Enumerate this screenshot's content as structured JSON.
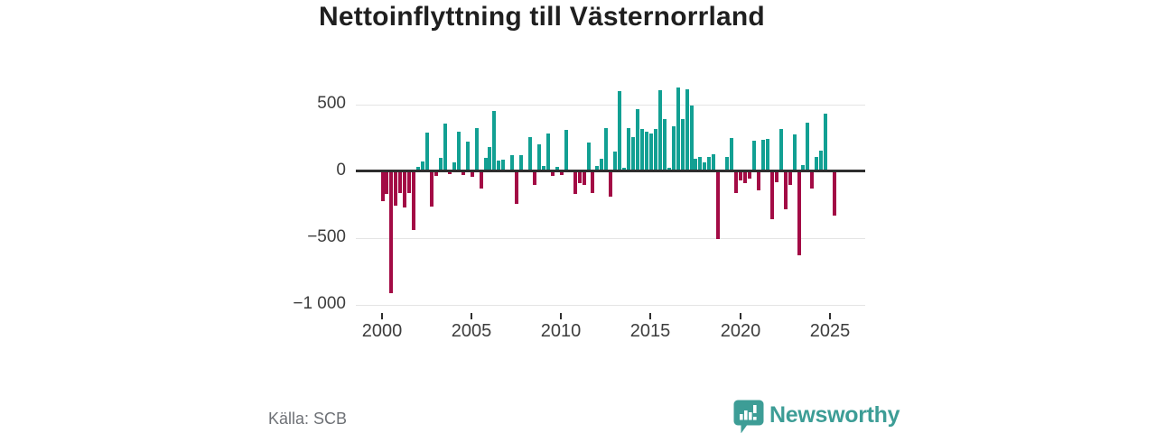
{
  "title": "Nettoinflyttning till Västernorrland",
  "footer": {
    "source": "Källa: SCB",
    "brand": "Newsworthy"
  },
  "colors": {
    "positive_bar": "#12a093",
    "negative_bar": "#a30b45",
    "zero_axis": "#2e2e2e",
    "gridline": "#e4e4e4",
    "tick_label": "#3d3d3d",
    "title_text": "#1f1f1f",
    "source_text": "#6e7176",
    "brand_teal": "#3d9d96",
    "background": "#ffffff"
  },
  "chart_data": {
    "type": "bar",
    "title": "Nettoinflyttning till Västernorrland",
    "frequency": "quarterly",
    "start": "2000 Q1",
    "end": "2025 Q2",
    "grid": "horizontal",
    "legend": "none",
    "x_axis": {
      "tick_labels": [
        "2000",
        "2005",
        "2010",
        "2015",
        "2020",
        "2025"
      ]
    },
    "y_axis": {
      "tick_labels": [
        "500",
        "0",
        "−500",
        "−1 000"
      ],
      "tick_values": [
        500,
        0,
        -500,
        -1000
      ],
      "range": [
        -1050,
        660
      ]
    },
    "positive_color": "#12a093",
    "negative_color": "#a30b45",
    "values_by_year": {
      "2000": [
        -220,
        -170,
        -910,
        -255
      ],
      "2001": [
        -165,
        -270,
        -160,
        -440
      ],
      "2002": [
        35,
        75,
        290,
        -265
      ],
      "2003": [
        -35,
        100,
        355,
        -20
      ],
      "2004": [
        65,
        300,
        -30,
        225
      ],
      "2005": [
        -40,
        325,
        -130,
        100
      ],
      "2006": [
        180,
        450,
        80,
        85
      ],
      "2007": [
        5,
        120,
        -245,
        120
      ],
      "2008": [
        10,
        260,
        -100,
        200
      ],
      "2009": [
        40,
        285,
        -35,
        35
      ],
      "2010": [
        -30,
        310,
        -5,
        -170
      ],
      "2011": [
        -85,
        -100,
        215,
        -160
      ],
      "2012": [
        40,
        95,
        325,
        -190
      ],
      "2013": [
        150,
        600,
        30,
        325
      ],
      "2014": [
        255,
        465,
        320,
        300
      ],
      "2015": [
        285,
        315,
        610,
        390
      ],
      "2016": [
        30,
        335,
        630,
        390
      ],
      "2017": [
        615,
        490,
        95,
        105
      ],
      "2018": [
        65,
        110,
        130,
        -505
      ],
      "2019": [
        5,
        110,
        250,
        -165
      ],
      "2020": [
        -65,
        -85,
        -55,
        230
      ],
      "2021": [
        -145,
        235,
        245,
        -360
      ],
      "2022": [
        -80,
        320,
        -285,
        -100
      ],
      "2023": [
        275,
        -630,
        50,
        365
      ],
      "2024": [
        -125,
        110,
        155,
        435
      ],
      "2025": [
        10,
        -330
      ]
    }
  }
}
